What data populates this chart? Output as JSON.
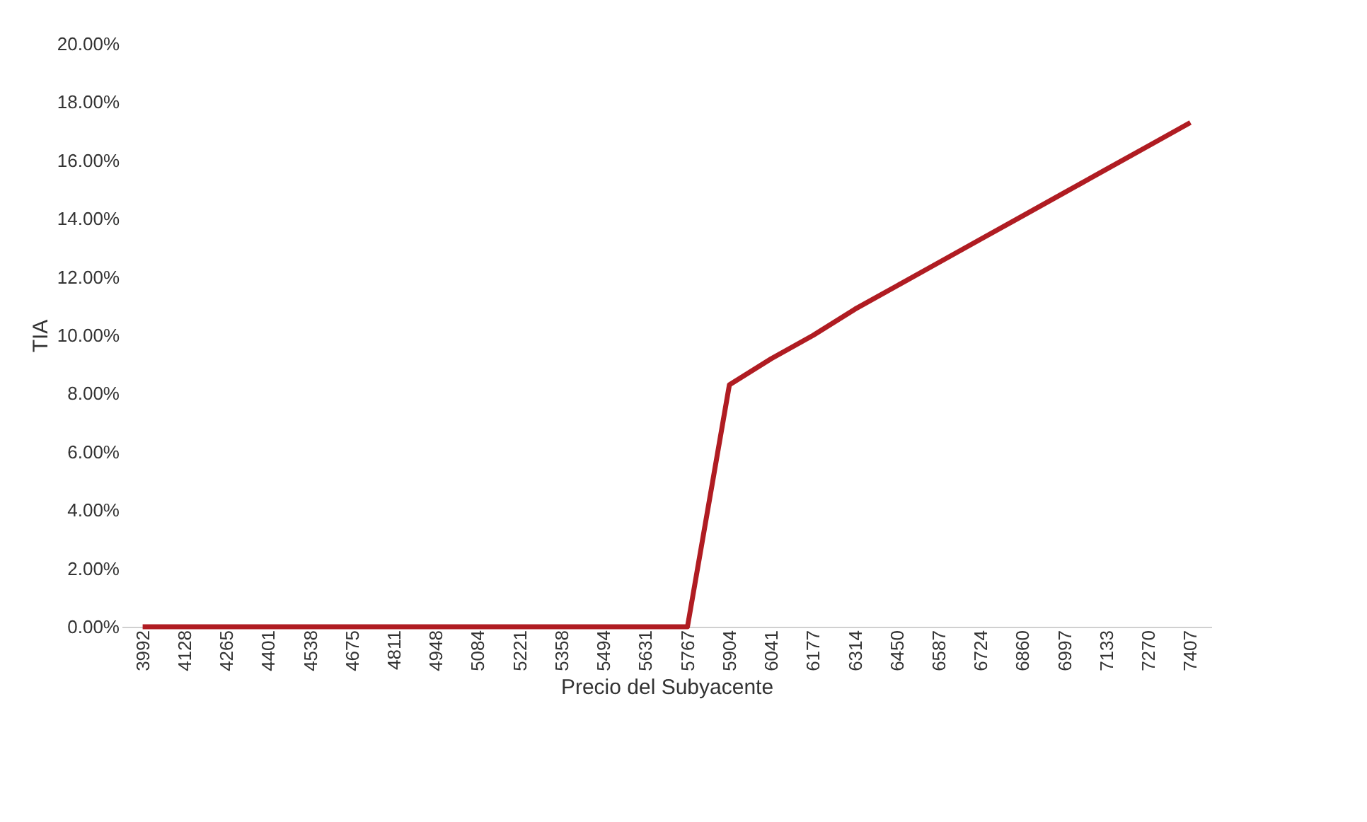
{
  "chart_data": {
    "type": "line",
    "xlabel": "Precio del Subyacente",
    "ylabel": "TIA",
    "categories": [
      "3992",
      "4128",
      "4265",
      "4401",
      "4538",
      "4675",
      "4811",
      "4948",
      "5084",
      "5221",
      "5358",
      "5494",
      "5631",
      "5767",
      "5904",
      "6041",
      "6177",
      "6314",
      "6450",
      "6587",
      "6724",
      "6860",
      "6997",
      "7133",
      "7270",
      "7407"
    ],
    "series": [
      {
        "color": "#b01c22",
        "values": [
          0,
          0,
          0,
          0,
          0,
          0,
          0,
          0,
          0,
          0,
          0,
          0,
          0,
          0,
          8.3,
          9.2,
          10.0,
          10.9,
          11.7,
          12.5,
          13.3,
          14.1,
          14.9,
          15.7,
          16.5,
          17.3
        ]
      }
    ],
    "ylim": [
      0,
      20
    ],
    "yticks": [
      {
        "value": 0,
        "label": "0.00%"
      },
      {
        "value": 2,
        "label": "2.00%"
      },
      {
        "value": 4,
        "label": "4.00%"
      },
      {
        "value": 6,
        "label": "6.00%"
      },
      {
        "value": 8,
        "label": "8.00%"
      },
      {
        "value": 10,
        "label": "10.00%"
      },
      {
        "value": 12,
        "label": "12.00%"
      },
      {
        "value": 14,
        "label": "14.00%"
      },
      {
        "value": 16,
        "label": "16.00%"
      },
      {
        "value": 18,
        "label": "18.00%"
      },
      {
        "value": 20,
        "label": "20.00%"
      }
    ],
    "grid": false,
    "marker": "none",
    "line_style": "solid"
  }
}
